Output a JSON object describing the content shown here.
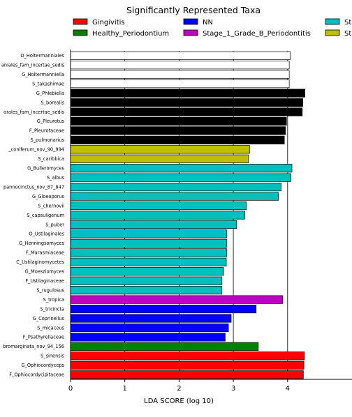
{
  "chart_data": {
    "type": "bar",
    "orientation": "horizontal",
    "title": "Significantly Represented Taxa",
    "xlabel": "LDA SCORE (log 10)",
    "ylabel": "",
    "xlim": [
      0,
      5
    ],
    "xticks": [
      0,
      1,
      2,
      3,
      4
    ],
    "grid": "vertical lines",
    "legend_position": "top",
    "legend": [
      {
        "name": "Gingivitis",
        "color": "#ff0000"
      },
      {
        "name": "Healthy_Periodontium",
        "color": "#008000"
      },
      {
        "name": "NN",
        "color": "#0000ff"
      },
      {
        "name": "Stage_1_Grade_B_Periodontitis",
        "color": "#c000c0"
      },
      {
        "name": "St",
        "color": "#00bfbf"
      },
      {
        "name": "St",
        "color": "#bfbf00"
      }
    ],
    "bars": [
      {
        "label": "O_Holtermanniales",
        "value": 4.05,
        "color": "#ffffff"
      },
      {
        "label": "aniales_fam_incertae_sedis",
        "value": 4.03,
        "color": "#ffffff"
      },
      {
        "label": "G_Holtermanniella",
        "value": 4.03,
        "color": "#ffffff"
      },
      {
        "label": "S_takashimae",
        "value": 4.03,
        "color": "#ffffff"
      },
      {
        "label": "G_Phlebiella",
        "value": 4.32,
        "color": "#000000"
      },
      {
        "label": "S_borealis",
        "value": 4.28,
        "color": "#000000"
      },
      {
        "label": "orales_fam_incertae_sedis",
        "value": 4.27,
        "color": "#000000"
      },
      {
        "label": "G_Pleurotus",
        "value": 3.98,
        "color": "#000000"
      },
      {
        "label": "F_Pleurotaceae",
        "value": 3.96,
        "color": "#000000"
      },
      {
        "label": "S_pulmonarius",
        "value": 3.94,
        "color": "#000000"
      },
      {
        "label": "_coniferum_nov_90_994",
        "value": 3.3,
        "color": "#bfbf00"
      },
      {
        "label": "S_caribbica",
        "value": 3.28,
        "color": "#bfbf00"
      },
      {
        "label": "G_Bulleromyces",
        "value": 4.08,
        "color": "#00bfbf"
      },
      {
        "label": "S_albus",
        "value": 4.06,
        "color": "#00bfbf"
      },
      {
        "label": "pannocinctus_nov_87_847",
        "value": 3.88,
        "color": "#00bfbf"
      },
      {
        "label": "G_Gloeoporus",
        "value": 3.83,
        "color": "#00bfbf"
      },
      {
        "label": "S_chernovii",
        "value": 3.24,
        "color": "#00bfbf"
      },
      {
        "label": "S_capsuligenum",
        "value": 3.21,
        "color": "#00bfbf"
      },
      {
        "label": "S_puber",
        "value": 3.06,
        "color": "#00bfbf"
      },
      {
        "label": "O_Ustilaginales",
        "value": 2.88,
        "color": "#00bfbf"
      },
      {
        "label": "G_Henningsomyces",
        "value": 2.88,
        "color": "#00bfbf"
      },
      {
        "label": "F_Marasmiaceae",
        "value": 2.88,
        "color": "#00bfbf"
      },
      {
        "label": "C_Ustilaginomycetes",
        "value": 2.87,
        "color": "#00bfbf"
      },
      {
        "label": "G_Moesziomyces",
        "value": 2.82,
        "color": "#00bfbf"
      },
      {
        "label": "F_Ustilaginaceae",
        "value": 2.79,
        "color": "#00bfbf"
      },
      {
        "label": "S_rugulosus",
        "value": 2.79,
        "color": "#00bfbf"
      },
      {
        "label": "S_tropica",
        "value": 3.91,
        "color": "#c000c0"
      },
      {
        "label": "S_tricincta",
        "value": 3.42,
        "color": "#0000ff"
      },
      {
        "label": "G_Coprinellus",
        "value": 2.96,
        "color": "#0000ff"
      },
      {
        "label": "S_micaceus",
        "value": 2.91,
        "color": "#0000ff"
      },
      {
        "label": "F_Psathyrellaceae",
        "value": 2.85,
        "color": "#0000ff"
      },
      {
        "label": "bromarginata_nov_94_156",
        "value": 3.46,
        "color": "#008000"
      },
      {
        "label": "S_sinensis",
        "value": 4.31,
        "color": "#ff0000"
      },
      {
        "label": "G_Ophiocordyceps",
        "value": 4.3,
        "color": "#ff0000"
      },
      {
        "label": "F_Ophiocordycipitaceae",
        "value": 4.29,
        "color": "#ff0000"
      }
    ]
  }
}
